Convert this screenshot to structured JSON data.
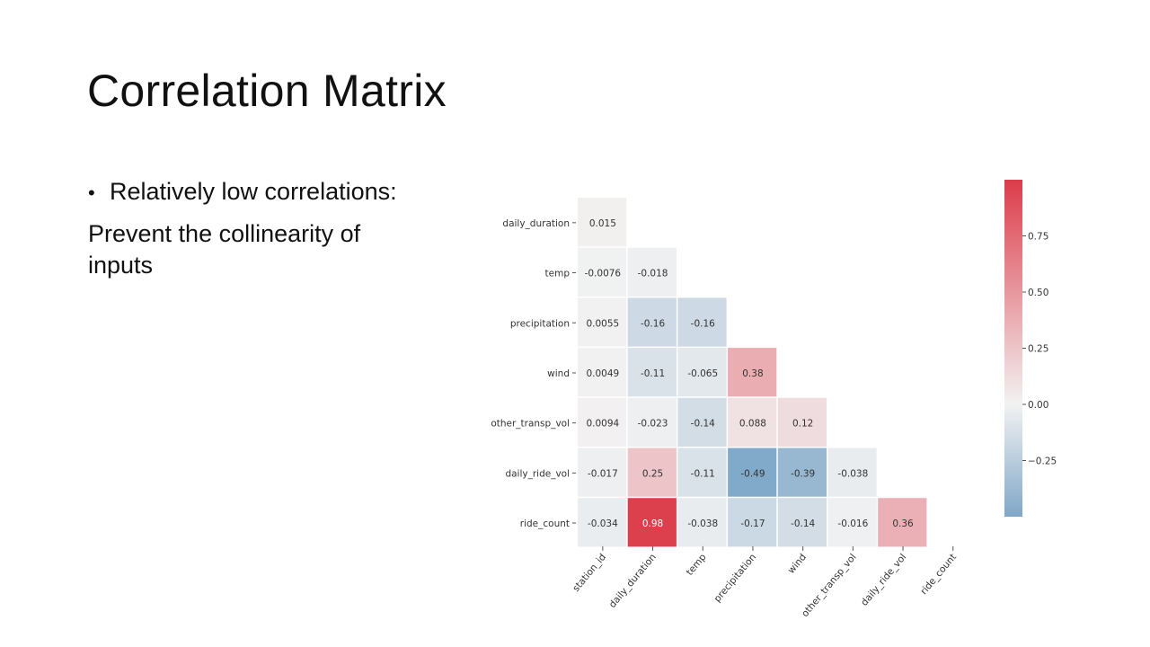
{
  "slide": {
    "title": "Correlation Matrix",
    "bullet": "Relatively low correlations:",
    "subtext": "Prevent the collinearity of inputs"
  },
  "colors": {
    "positive": "#dc3c4a",
    "negative": "#7fa7c8",
    "neutral": "#f2f2f2"
  },
  "chart_data": {
    "type": "heatmap",
    "title": "",
    "row_labels": [
      "daily_duration",
      "temp",
      "precipitation",
      "wind",
      "other_transp_vol",
      "daily_ride_vol",
      "ride_count"
    ],
    "col_labels": [
      "station_id",
      "daily_duration",
      "temp",
      "precipitation",
      "wind",
      "other_transp_vol",
      "daily_ride_vol",
      "ride_count"
    ],
    "values": [
      [
        0.015
      ],
      [
        -0.0076,
        -0.018
      ],
      [
        0.0055,
        -0.16,
        -0.16
      ],
      [
        0.0049,
        -0.11,
        -0.065,
        0.38
      ],
      [
        0.0094,
        -0.023,
        -0.14,
        0.088,
        0.12
      ],
      [
        -0.017,
        0.25,
        -0.11,
        -0.49,
        -0.39,
        -0.038
      ],
      [
        -0.034,
        0.98,
        -0.038,
        -0.17,
        -0.14,
        -0.016,
        0.36
      ]
    ],
    "colorbar": {
      "ticks": [
        0.75,
        0.5,
        0.25,
        0.0,
        -0.25
      ],
      "tick_labels": [
        "0.75",
        "0.50",
        "0.25",
        "0.00",
        "−0.25"
      ],
      "range": [
        -0.5,
        1.0
      ]
    },
    "mask": "upper triangle",
    "grid": false,
    "legend": "right colorbar"
  }
}
